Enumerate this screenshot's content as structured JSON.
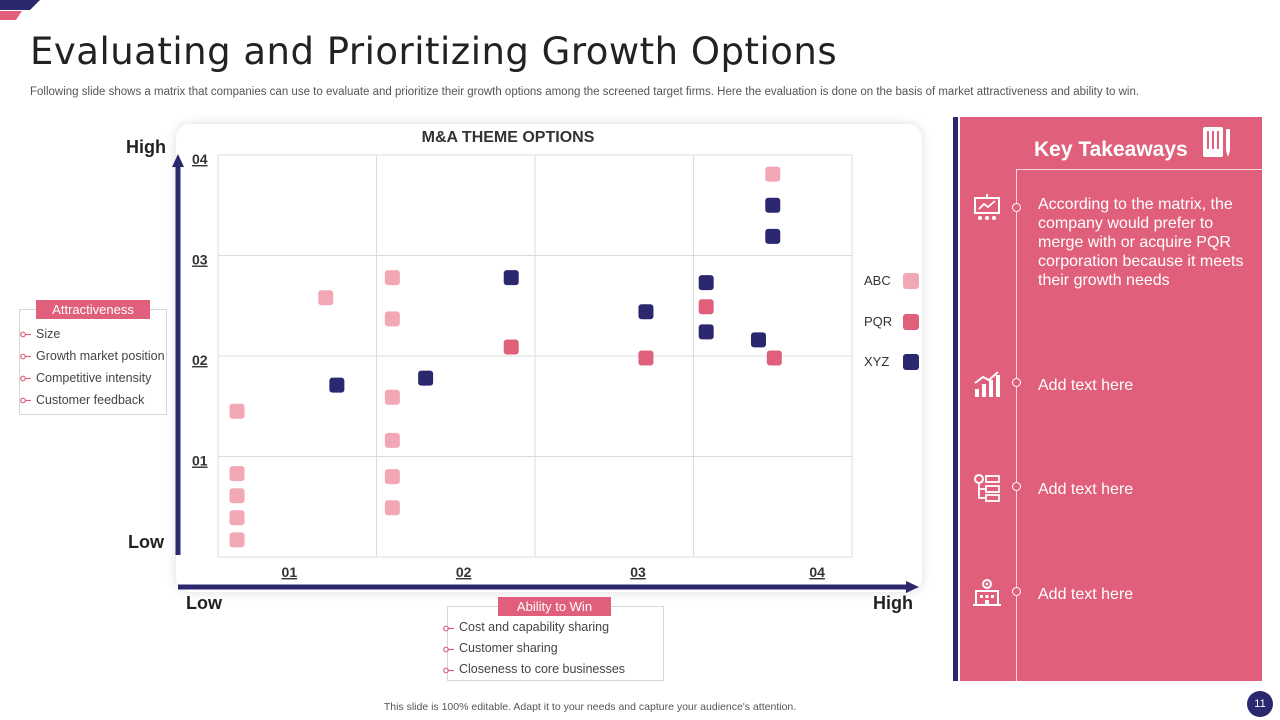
{
  "page": {
    "title": "Evaluating and Prioritizing Growth Options",
    "subtitle": "Following slide shows a matrix that companies can use to evaluate and prioritize their growth options among the screened target firms. Here the evaluation is done on the basis of market attractiveness and ability to win.",
    "footer": "This slide is 100% editable. Adapt it to your needs and capture your audience's attention.",
    "page_number": "11"
  },
  "axes": {
    "y_high": "High",
    "y_low": "Low",
    "x_low": "Low",
    "x_high": "High"
  },
  "attractiveness": {
    "label": "Attractiveness",
    "items": [
      "Size",
      "Growth market position",
      "Competitive intensity",
      "Customer feedback"
    ]
  },
  "ability": {
    "label": "Ability to Win",
    "items": [
      "Cost and capability sharing",
      "Customer sharing",
      "Closeness to core businesses"
    ]
  },
  "takeaways": {
    "title": "Key Takeaways",
    "items": [
      "According to the matrix, the company would prefer to merge with or acquire PQR corporation because it meets their growth needs",
      "Add text here",
      "Add text here",
      "Add text here"
    ]
  },
  "colors": {
    "ABC": "#f2a7b5",
    "PQR": "#e0607b",
    "XYZ": "#2b2870",
    "accent": "#e0607b",
    "navy": "#2b2870"
  },
  "chart_data": {
    "type": "scatter",
    "title": "M&A THEME OPTIONS",
    "xlabel": "Ability to Win",
    "ylabel": "Attractiveness",
    "xlim": [
      0,
      4
    ],
    "ylim": [
      0,
      4
    ],
    "x_ticks": [
      "01",
      "02",
      "03",
      "04"
    ],
    "y_ticks": [
      "01",
      "02",
      "03",
      "04"
    ],
    "grid": true,
    "legend": "right",
    "series": [
      {
        "name": "ABC",
        "points": [
          {
            "x": 0.12,
            "y": 1.45
          },
          {
            "x": 0.12,
            "y": 0.83
          },
          {
            "x": 0.12,
            "y": 0.61
          },
          {
            "x": 0.12,
            "y": 0.39
          },
          {
            "x": 0.12,
            "y": 0.17
          },
          {
            "x": 0.68,
            "y": 2.58
          },
          {
            "x": 1.1,
            "y": 2.78
          },
          {
            "x": 1.1,
            "y": 2.37
          },
          {
            "x": 1.1,
            "y": 1.59
          },
          {
            "x": 1.1,
            "y": 1.16
          },
          {
            "x": 1.1,
            "y": 0.8
          },
          {
            "x": 1.1,
            "y": 0.49
          },
          {
            "x": 3.5,
            "y": 3.81
          }
        ]
      },
      {
        "name": "PQR",
        "points": [
          {
            "x": 1.85,
            "y": 2.09
          },
          {
            "x": 2.7,
            "y": 1.98
          },
          {
            "x": 3.08,
            "y": 2.49
          },
          {
            "x": 3.51,
            "y": 1.98
          }
        ]
      },
      {
        "name": "XYZ",
        "points": [
          {
            "x": 0.75,
            "y": 1.71
          },
          {
            "x": 1.31,
            "y": 1.78
          },
          {
            "x": 1.85,
            "y": 2.78
          },
          {
            "x": 2.7,
            "y": 2.44
          },
          {
            "x": 3.08,
            "y": 2.73
          },
          {
            "x": 3.08,
            "y": 2.24
          },
          {
            "x": 3.41,
            "y": 2.16
          },
          {
            "x": 3.5,
            "y": 3.5
          },
          {
            "x": 3.5,
            "y": 3.19
          }
        ]
      }
    ]
  }
}
